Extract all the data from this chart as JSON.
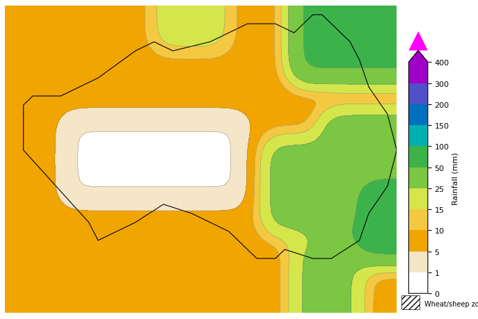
{
  "title": "",
  "colorbar_label": "Rainfall (mm)",
  "colorbar_levels": [
    0,
    1,
    5,
    10,
    15,
    25,
    50,
    100,
    150,
    200,
    300,
    400
  ],
  "colorbar_colors": [
    "#ffffff",
    "#f5e6c8",
    "#f0a500",
    "#f5c842",
    "#d4e64a",
    "#7bc642",
    "#3cb34a",
    "#00b0b0",
    "#0070c0",
    "#5050c8",
    "#a000c8",
    "#ff00ff"
  ],
  "wheat_sheep_label": "Wheat/sheep zone",
  "background_color": "#ffffff",
  "map_background": "#ffffff",
  "border_color": "#cccccc",
  "figsize": [
    6.87,
    4.6
  ],
  "dpi": 100
}
